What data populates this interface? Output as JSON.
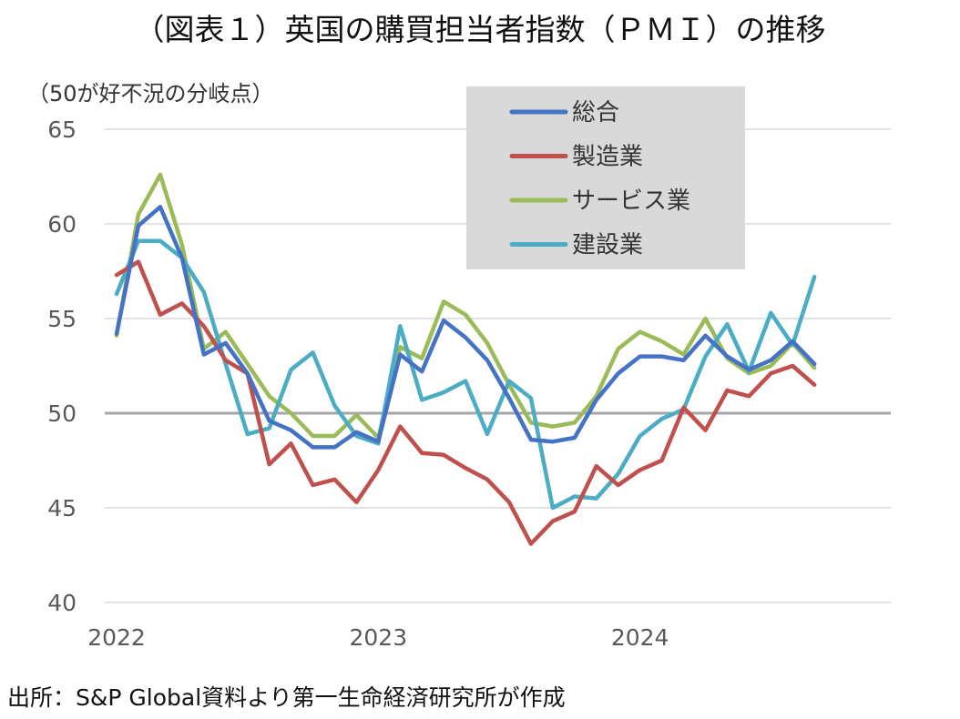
{
  "chart_data": {
    "type": "line",
    "title": "（図表１）英国の購買担当者指数（ＰＭＩ）の推移",
    "ylabel": "（50が好不況の分岐点）",
    "ylim": [
      40,
      65
    ],
    "yticks": [
      "65",
      "60",
      "55",
      "50",
      "45",
      "40"
    ],
    "xticks": [
      "2022",
      "2023",
      "2024"
    ],
    "reference_line": 50,
    "grid": true,
    "legend_position": "top-right",
    "x": [
      "2022-01",
      "2022-02",
      "2022-03",
      "2022-04",
      "2022-05",
      "2022-06",
      "2022-07",
      "2022-08",
      "2022-09",
      "2022-10",
      "2022-11",
      "2022-12",
      "2023-01",
      "2023-02",
      "2023-03",
      "2023-04",
      "2023-05",
      "2023-06",
      "2023-07",
      "2023-08",
      "2023-09",
      "2023-10",
      "2023-11",
      "2023-12",
      "2024-01",
      "2024-02",
      "2024-03",
      "2024-04",
      "2024-05",
      "2024-06",
      "2024-07",
      "2024-08",
      "2024-09",
      "2024-10",
      "2024-11",
      "2024-12"
    ],
    "series": [
      {
        "name": "総合",
        "color": "#4472c4",
        "values": [
          54.2,
          59.9,
          60.9,
          58.2,
          53.1,
          53.7,
          52.1,
          49.6,
          49.1,
          48.2,
          48.2,
          49.0,
          48.5,
          53.1,
          52.2,
          54.9,
          54.0,
          52.8,
          50.8,
          48.6,
          48.5,
          48.7,
          50.7,
          52.1,
          53.0,
          53.0,
          52.8,
          54.1,
          53.0,
          52.3,
          52.8,
          53.8,
          52.6,
          null,
          null,
          null
        ]
      },
      {
        "name": "製造業",
        "color": "#c0504d",
        "values": [
          57.3,
          58.0,
          55.2,
          55.8,
          54.6,
          52.8,
          52.1,
          47.3,
          48.4,
          46.2,
          46.5,
          45.3,
          47.0,
          49.3,
          47.9,
          47.8,
          47.1,
          46.5,
          45.3,
          43.1,
          44.3,
          44.8,
          47.2,
          46.2,
          47.0,
          47.5,
          50.3,
          49.1,
          51.2,
          50.9,
          52.1,
          52.5,
          51.5,
          null,
          null,
          null
        ]
      },
      {
        "name": "サービス業",
        "color": "#9bbb59",
        "values": [
          54.1,
          60.5,
          62.6,
          58.9,
          53.4,
          54.3,
          52.6,
          50.9,
          50.0,
          48.8,
          48.8,
          49.9,
          48.7,
          53.5,
          52.9,
          55.9,
          55.2,
          53.7,
          51.5,
          49.5,
          49.3,
          49.5,
          50.9,
          53.4,
          54.3,
          53.8,
          53.1,
          55.0,
          52.9,
          52.1,
          52.5,
          53.7,
          52.4,
          null,
          null,
          null
        ]
      },
      {
        "name": "建設業",
        "color": "#4bacc6",
        "values": [
          56.3,
          59.1,
          59.1,
          58.2,
          56.4,
          52.6,
          48.9,
          49.2,
          52.3,
          53.2,
          50.4,
          48.8,
          48.4,
          54.6,
          50.7,
          51.1,
          51.7,
          48.9,
          51.7,
          50.8,
          45.0,
          45.6,
          45.5,
          46.8,
          48.8,
          49.7,
          50.2,
          53.0,
          54.7,
          52.2,
          55.3,
          53.6,
          57.2,
          null,
          null,
          null
        ]
      }
    ]
  },
  "footer": {
    "source": "出所：S&P Global資料より第一生命経済研究所が作成"
  }
}
